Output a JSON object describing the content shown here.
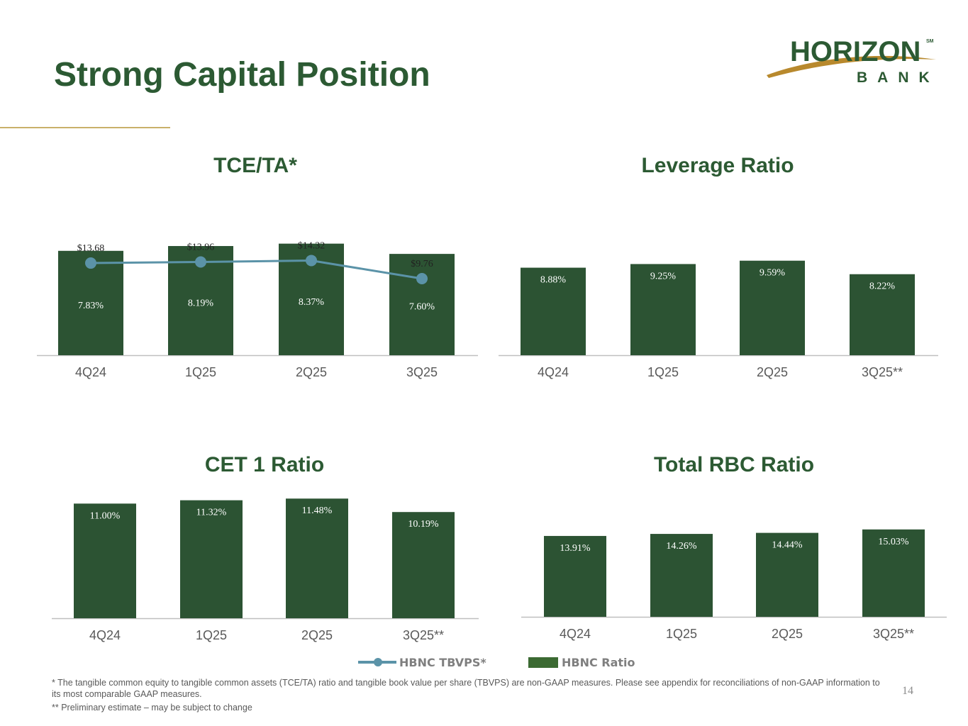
{
  "page": {
    "title": "Strong Capital Position",
    "page_number": "14",
    "logo": {
      "name": "HORIZON",
      "sub": "BANK",
      "mark": "SM"
    }
  },
  "colors": {
    "bar": "#2c5333",
    "line": "#5b93a8",
    "title": "#2c5a33",
    "accent": "#c9b06a"
  },
  "legend": {
    "line_label": "HBNC TBVPS*",
    "bar_label": "HBNC Ratio"
  },
  "footnotes": {
    "note1": "* The tangible common equity to tangible common assets (TCE/TA) ratio and tangible book value per share (TBVPS) are non-GAAP measures. Please see appendix for reconciliations of non-GAAP information to its most comparable GAAP measures.",
    "note2": "** Preliminary estimate – may be subject to change"
  },
  "chart_data": [
    {
      "id": "tce",
      "type": "bar",
      "title": "TCE/TA*",
      "categories": [
        "4Q24",
        "1Q25",
        "2Q25",
        "3Q25"
      ],
      "series": [
        {
          "name": "HBNC Ratio",
          "values": [
            7.83,
            8.19,
            8.37,
            7.6
          ],
          "labels": [
            "7.83%",
            "8.19%",
            "8.37%",
            "7.60%"
          ]
        },
        {
          "name": "HBNC TBVPS*",
          "type": "line",
          "values": [
            13.68,
            13.96,
            14.32,
            9.76
          ],
          "labels": [
            "$13.68",
            "$13.96",
            "$14.32",
            "$9.76"
          ]
        }
      ]
    },
    {
      "id": "leverage",
      "type": "bar",
      "title": "Leverage Ratio",
      "categories": [
        "4Q24",
        "1Q25",
        "2Q25",
        "3Q25**"
      ],
      "series": [
        {
          "name": "HBNC Ratio",
          "values": [
            8.88,
            9.25,
            9.59,
            8.22
          ],
          "labels": [
            "8.88%",
            "9.25%",
            "9.59%",
            "8.22%"
          ]
        }
      ]
    },
    {
      "id": "cet1",
      "type": "bar",
      "title": "CET 1 Ratio",
      "categories": [
        "4Q24",
        "1Q25",
        "2Q25",
        "3Q25**"
      ],
      "series": [
        {
          "name": "HBNC Ratio",
          "values": [
            11.0,
            11.32,
            11.48,
            10.19
          ],
          "labels": [
            "11.00%",
            "11.32%",
            "11.48%",
            "10.19%"
          ]
        }
      ]
    },
    {
      "id": "rbc",
      "type": "bar",
      "title": "Total RBC Ratio",
      "categories": [
        "4Q24",
        "1Q25",
        "2Q25",
        "3Q25**"
      ],
      "series": [
        {
          "name": "HBNC Ratio",
          "values": [
            13.91,
            14.26,
            14.44,
            15.03
          ],
          "labels": [
            "13.91%",
            "14.26%",
            "14.44%",
            "15.03%"
          ]
        }
      ]
    }
  ]
}
